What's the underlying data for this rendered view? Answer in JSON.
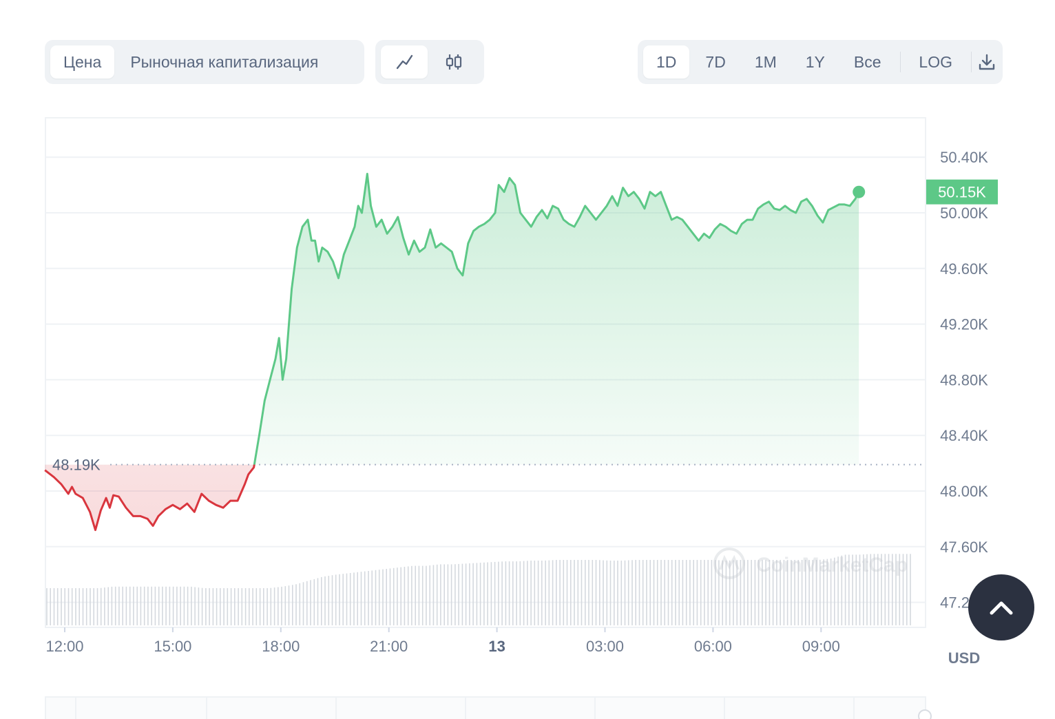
{
  "tabs": {
    "type": [
      {
        "label": "Цена",
        "active": true
      },
      {
        "label": "Рыночная капитализация",
        "active": false
      }
    ],
    "view": [
      {
        "icon": "line-chart-icon",
        "active": true
      },
      {
        "icon": "candlestick-icon",
        "active": false
      }
    ],
    "range": [
      {
        "label": "1D",
        "active": true
      },
      {
        "label": "7D",
        "active": false
      },
      {
        "label": "1M",
        "active": false
      },
      {
        "label": "1Y",
        "active": false
      },
      {
        "label": "Все",
        "active": false
      }
    ],
    "log_label": "LOG",
    "download_icon": "download-icon"
  },
  "scroll_top_icon": "chevron-up-icon",
  "colors": {
    "up": "#5dc887",
    "down": "#d9363e",
    "grid": "#eff2f5",
    "axis_text": "#6f7b8f",
    "button_dark": "#2b3140"
  },
  "chart_data": {
    "type": "line",
    "currency": "USD",
    "baseline_label": "48.19K",
    "baseline_value": 48.19,
    "current_label": "50.15K",
    "current_value": 50.15,
    "watermark": "CoinMarketCap",
    "y_ticks": [
      "50.40K",
      "50.00K",
      "49.60K",
      "49.20K",
      "48.80K",
      "48.40K",
      "48.00K",
      "47.60K",
      "47.20K"
    ],
    "y_tick_values": [
      50.4,
      50.0,
      49.6,
      49.2,
      48.8,
      48.4,
      48.0,
      47.6,
      47.2
    ],
    "ylim": [
      47.0,
      50.7
    ],
    "x_ticks": [
      {
        "label": "12:00",
        "hour": 0,
        "bold": false
      },
      {
        "label": "15:00",
        "hour": 3,
        "bold": false
      },
      {
        "label": "18:00",
        "hour": 6,
        "bold": false
      },
      {
        "label": "21:00",
        "hour": 9,
        "bold": false
      },
      {
        "label": "13",
        "hour": 12,
        "bold": true
      },
      {
        "label": "03:00",
        "hour": 15,
        "bold": false
      },
      {
        "label": "06:00",
        "hour": 18,
        "bold": false
      },
      {
        "label": "09:00",
        "hour": 21,
        "bold": false
      }
    ],
    "x_range_hours": [
      0,
      23.7
    ],
    "series": [
      {
        "unit": "K USD",
        "points": [
          [
            -0.55,
            48.15
          ],
          [
            -0.3,
            48.1
          ],
          [
            -0.1,
            48.05
          ],
          [
            0.1,
            47.98
          ],
          [
            0.2,
            48.03
          ],
          [
            0.3,
            47.98
          ],
          [
            0.5,
            47.95
          ],
          [
            0.7,
            47.85
          ],
          [
            0.85,
            47.72
          ],
          [
            1.0,
            47.86
          ],
          [
            1.15,
            47.95
          ],
          [
            1.25,
            47.88
          ],
          [
            1.35,
            47.97
          ],
          [
            1.5,
            47.96
          ],
          [
            1.7,
            47.88
          ],
          [
            1.9,
            47.82
          ],
          [
            2.1,
            47.82
          ],
          [
            2.3,
            47.8
          ],
          [
            2.45,
            47.75
          ],
          [
            2.6,
            47.82
          ],
          [
            2.8,
            47.87
          ],
          [
            3.0,
            47.9
          ],
          [
            3.2,
            47.87
          ],
          [
            3.4,
            47.91
          ],
          [
            3.6,
            47.85
          ],
          [
            3.8,
            47.98
          ],
          [
            4.0,
            47.93
          ],
          [
            4.2,
            47.9
          ],
          [
            4.4,
            47.88
          ],
          [
            4.6,
            47.93
          ],
          [
            4.8,
            47.93
          ],
          [
            5.0,
            48.05
          ],
          [
            5.1,
            48.12
          ],
          [
            5.25,
            48.17
          ],
          [
            5.4,
            48.4
          ],
          [
            5.55,
            48.65
          ],
          [
            5.7,
            48.8
          ],
          [
            5.85,
            48.95
          ],
          [
            5.95,
            49.1
          ],
          [
            6.05,
            48.8
          ],
          [
            6.15,
            48.95
          ],
          [
            6.3,
            49.45
          ],
          [
            6.45,
            49.75
          ],
          [
            6.6,
            49.9
          ],
          [
            6.75,
            49.95
          ],
          [
            6.85,
            49.8
          ],
          [
            6.95,
            49.8
          ],
          [
            7.05,
            49.65
          ],
          [
            7.15,
            49.75
          ],
          [
            7.3,
            49.72
          ],
          [
            7.45,
            49.65
          ],
          [
            7.6,
            49.53
          ],
          [
            7.75,
            49.7
          ],
          [
            7.9,
            49.8
          ],
          [
            8.05,
            49.9
          ],
          [
            8.15,
            50.05
          ],
          [
            8.25,
            50.0
          ],
          [
            8.4,
            50.28
          ],
          [
            8.5,
            50.05
          ],
          [
            8.65,
            49.9
          ],
          [
            8.8,
            49.95
          ],
          [
            8.95,
            49.85
          ],
          [
            9.1,
            49.9
          ],
          [
            9.25,
            49.97
          ],
          [
            9.4,
            49.82
          ],
          [
            9.55,
            49.7
          ],
          [
            9.7,
            49.8
          ],
          [
            9.85,
            49.72
          ],
          [
            10.0,
            49.75
          ],
          [
            10.15,
            49.88
          ],
          [
            10.3,
            49.75
          ],
          [
            10.45,
            49.78
          ],
          [
            10.6,
            49.75
          ],
          [
            10.75,
            49.72
          ],
          [
            10.9,
            49.6
          ],
          [
            11.05,
            49.55
          ],
          [
            11.2,
            49.78
          ],
          [
            11.35,
            49.87
          ],
          [
            11.5,
            49.9
          ],
          [
            11.65,
            49.92
          ],
          [
            11.8,
            49.95
          ],
          [
            11.95,
            50.0
          ],
          [
            12.05,
            50.2
          ],
          [
            12.2,
            50.15
          ],
          [
            12.35,
            50.25
          ],
          [
            12.5,
            50.2
          ],
          [
            12.65,
            50.0
          ],
          [
            12.8,
            49.95
          ],
          [
            12.95,
            49.9
          ],
          [
            13.1,
            49.97
          ],
          [
            13.25,
            50.02
          ],
          [
            13.4,
            49.96
          ],
          [
            13.55,
            50.05
          ],
          [
            13.7,
            50.03
          ],
          [
            13.85,
            49.95
          ],
          [
            14.0,
            49.92
          ],
          [
            14.15,
            49.9
          ],
          [
            14.3,
            49.97
          ],
          [
            14.45,
            50.05
          ],
          [
            14.6,
            50.0
          ],
          [
            14.75,
            49.95
          ],
          [
            14.9,
            50.0
          ],
          [
            15.05,
            50.05
          ],
          [
            15.2,
            50.12
          ],
          [
            15.35,
            50.05
          ],
          [
            15.5,
            50.18
          ],
          [
            15.65,
            50.12
          ],
          [
            15.8,
            50.15
          ],
          [
            15.95,
            50.1
          ],
          [
            16.1,
            50.03
          ],
          [
            16.25,
            50.15
          ],
          [
            16.4,
            50.12
          ],
          [
            16.55,
            50.15
          ],
          [
            16.7,
            50.05
          ],
          [
            16.85,
            49.95
          ],
          [
            17.0,
            49.97
          ],
          [
            17.15,
            49.95
          ],
          [
            17.3,
            49.9
          ],
          [
            17.45,
            49.85
          ],
          [
            17.6,
            49.8
          ],
          [
            17.75,
            49.85
          ],
          [
            17.9,
            49.82
          ],
          [
            18.05,
            49.88
          ],
          [
            18.2,
            49.92
          ],
          [
            18.35,
            49.9
          ],
          [
            18.5,
            49.87
          ],
          [
            18.65,
            49.85
          ],
          [
            18.8,
            49.92
          ],
          [
            18.95,
            49.95
          ],
          [
            19.1,
            49.95
          ],
          [
            19.25,
            50.03
          ],
          [
            19.4,
            50.06
          ],
          [
            19.55,
            50.08
          ],
          [
            19.7,
            50.03
          ],
          [
            19.85,
            50.02
          ],
          [
            20.0,
            50.05
          ],
          [
            20.15,
            50.02
          ],
          [
            20.3,
            50.0
          ],
          [
            20.45,
            50.08
          ],
          [
            20.6,
            50.1
          ],
          [
            20.75,
            50.05
          ],
          [
            20.9,
            49.98
          ],
          [
            21.05,
            49.93
          ],
          [
            21.2,
            50.02
          ],
          [
            21.35,
            50.04
          ],
          [
            21.5,
            50.06
          ],
          [
            21.65,
            50.06
          ],
          [
            21.8,
            50.05
          ],
          [
            21.95,
            50.1
          ],
          [
            22.05,
            50.15
          ]
        ]
      }
    ],
    "volume": {
      "series_hint": "relative volume bars",
      "values": [
        0.5,
        0.5,
        0.5,
        0.5,
        0.5,
        0.52,
        0.52,
        0.52,
        0.52,
        0.52,
        0.52,
        0.52,
        0.5,
        0.5,
        0.5,
        0.5,
        0.5,
        0.5,
        0.52,
        0.55,
        0.6,
        0.65,
        0.68,
        0.7,
        0.72,
        0.74,
        0.76,
        0.78,
        0.8,
        0.8,
        0.82,
        0.82,
        0.83,
        0.84,
        0.85,
        0.86,
        0.86,
        0.87,
        0.87,
        0.88,
        0.88,
        0.88,
        0.88,
        0.87,
        0.87,
        0.88,
        0.88,
        0.88,
        0.88,
        0.88,
        0.88,
        0.88,
        0.87,
        0.88,
        0.88,
        0.88,
        0.88,
        0.88,
        0.88,
        0.88,
        0.9,
        0.95,
        0.95,
        0.96,
        0.96,
        0.96,
        0.96
      ]
    }
  }
}
